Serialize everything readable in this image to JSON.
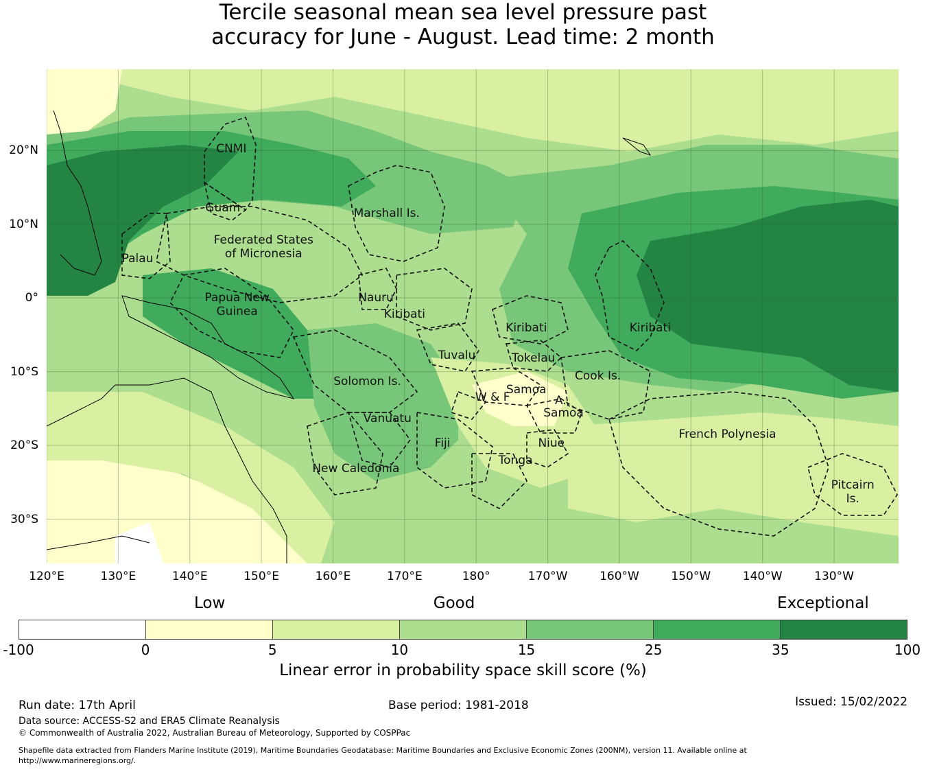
{
  "title": {
    "line1": "Tercile seasonal mean sea level pressure past",
    "line2": "accuracy for June - August. Lead time: 2 month"
  },
  "map": {
    "lon_range": [
      120,
      239
    ],
    "lat_range": [
      -36,
      31
    ],
    "longitude_ticks": [
      "120°E",
      "130°E",
      "140°E",
      "150°E",
      "160°E",
      "170°E",
      "180°",
      "170°W",
      "160°W",
      "150°W",
      "140°W",
      "130°W"
    ],
    "latitude_ticks": [
      "20°N",
      "10°N",
      "0°",
      "10°S",
      "20°S",
      "30°S"
    ],
    "regions": [
      {
        "name": "CNMI",
        "lon": 145.8,
        "lat": 20.2
      },
      {
        "name": "Guam",
        "lon": 144.6,
        "lat": 12.2
      },
      {
        "name": "Marshall Is.",
        "lon": 167.5,
        "lat": 11.5
      },
      {
        "name": "Federated States\nof Micronesia",
        "lon": 150.3,
        "lat": 6.9
      },
      {
        "name": "Palau",
        "lon": 132.7,
        "lat": 5.3
      },
      {
        "name": "Papua New\nGuinea",
        "lon": 146.6,
        "lat": -0.9
      },
      {
        "name": "Nauru",
        "lon": 166.0,
        "lat": 0.0
      },
      {
        "name": "Kiribati",
        "lon": 170.0,
        "lat": -2.2
      },
      {
        "name": "Kiribati",
        "lon": 187.0,
        "lat": -4.1
      },
      {
        "name": "Kiribati",
        "lon": 204.3,
        "lat": -4.1
      },
      {
        "name": "Tuvalu",
        "lon": 177.3,
        "lat": -7.8
      },
      {
        "name": "Tokelau",
        "lon": 188.0,
        "lat": -8.2
      },
      {
        "name": "Cook Is.",
        "lon": 197.0,
        "lat": -10.6
      },
      {
        "name": "Solomon Is.",
        "lon": 164.8,
        "lat": -11.3
      },
      {
        "name": "Samoa",
        "lon": 187.0,
        "lat": -12.5
      },
      {
        "name": "W & F",
        "lon": 182.3,
        "lat": -13.5
      },
      {
        "name": "A.",
        "lon": 191.8,
        "lat": -13.9
      },
      {
        "name": "Samoa",
        "lon": 192.2,
        "lat": -15.6
      },
      {
        "name": "Vanuatu",
        "lon": 167.6,
        "lat": -16.4
      },
      {
        "name": "Fiji",
        "lon": 175.3,
        "lat": -19.7
      },
      {
        "name": "Niue",
        "lon": 190.5,
        "lat": -19.7
      },
      {
        "name": "French Polynesia",
        "lon": 215.1,
        "lat": -18.5
      },
      {
        "name": "Tonga",
        "lon": 185.5,
        "lat": -22.0
      },
      {
        "name": "New Caledonia",
        "lon": 163.2,
        "lat": -23.2
      },
      {
        "name": "Pitcairn\nIs.",
        "lon": 232.6,
        "lat": -26.3
      }
    ]
  },
  "legend": {
    "categories": [
      {
        "label": "Low",
        "value_position": 0.215
      },
      {
        "label": "Good",
        "value_position": 0.49
      },
      {
        "label": "Exceptional",
        "value_position": 0.905
      }
    ],
    "bins": [
      {
        "from": -100,
        "to": 0,
        "color": "#ffffff"
      },
      {
        "from": 0,
        "to": 5,
        "color": "#ffffcc"
      },
      {
        "from": 5,
        "to": 10,
        "color": "#d9f0a3"
      },
      {
        "from": 10,
        "to": 15,
        "color": "#addd8e"
      },
      {
        "from": 15,
        "to": 25,
        "color": "#78c679"
      },
      {
        "from": 25,
        "to": 35,
        "color": "#41ab5d"
      },
      {
        "from": 35,
        "to": 100,
        "color": "#238443"
      }
    ],
    "tick_labels": [
      "-100",
      "0",
      "5",
      "10",
      "15",
      "25",
      "35",
      "100"
    ],
    "title": "Linear error in probability space skill score (%)"
  },
  "footer": {
    "run_date": "Run date: 17th April",
    "base_period": "Base period: 1981-2018",
    "issued": "Issued: 15/02/2022",
    "data_source": "Data source: ACCESS-S2 and ERA5 Climate Reanalysis",
    "copyright": "© Commonwealth of Australia 2022, Australian Bureau of Meteorology, Supported by COSPPac",
    "shapefile_line1": "Shapefile data extracted from Flanders Marine Institute (2019), Maritime Boundaries Geodatabase: Maritime Boundaries and Exclusive Economic Zones (200NM), version 11. Available online at",
    "shapefile_line2": "http://www.marineregions.org/."
  }
}
